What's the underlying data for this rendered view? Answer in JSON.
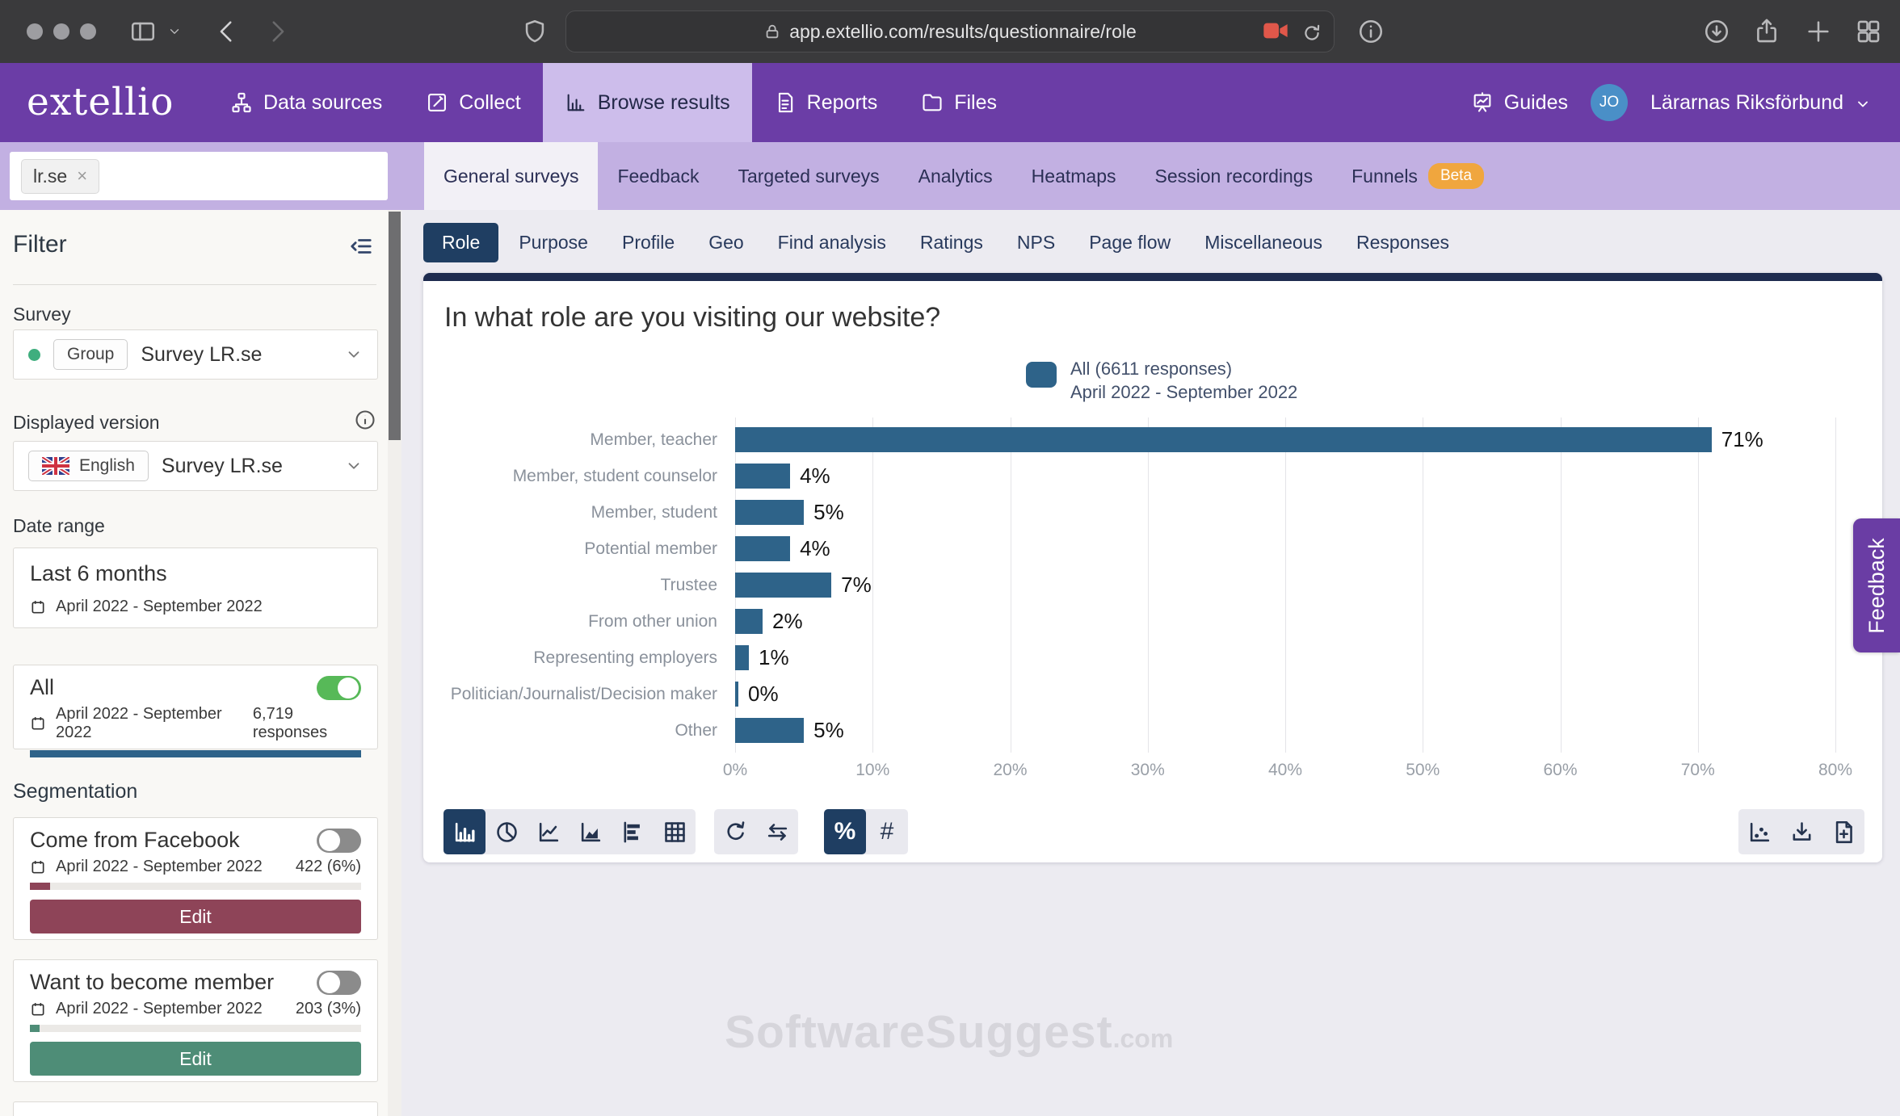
{
  "browser": {
    "url": "app.extellio.com/results/questionnaire/role"
  },
  "nav": {
    "brand": "extellio",
    "items": [
      {
        "label": "Data sources"
      },
      {
        "label": "Collect"
      },
      {
        "label": "Browse results"
      },
      {
        "label": "Reports"
      },
      {
        "label": "Files"
      }
    ],
    "guides_label": "Guides",
    "avatar_initials": "JO",
    "account_name": "Lärarnas Riksförbund"
  },
  "survey_tabs": {
    "filter_chip": "lr.se",
    "chip_close": "×",
    "items": [
      "General surveys",
      "Feedback",
      "Targeted surveys",
      "Analytics",
      "Heatmaps",
      "Session recordings",
      "Funnels"
    ],
    "beta_badge": "Beta"
  },
  "sidebar": {
    "heading": "Filter",
    "survey_label": "Survey",
    "survey_group_chip": "Group",
    "survey_value": "Survey LR.se",
    "displayed_version_label": "Displayed version",
    "language_chip": "English",
    "version_value": "Survey LR.se",
    "date_range_label": "Date range",
    "date_range_value": "Last 6 months",
    "date_range_detail": "April 2022 - September 2022",
    "all_card": {
      "title": "All",
      "date": "April 2022 - September 2022",
      "responses": "6,719 responses",
      "bar_color": "#2e6389"
    },
    "segmentation_label": "Segmentation",
    "segments": [
      {
        "title": "Come from Facebook",
        "date": "April 2022 - September 2022",
        "count": "422 (6%)",
        "edit_label": "Edit",
        "color": "#8e4458",
        "pct": 6
      },
      {
        "title": "Want to become member",
        "date": "April 2022 - September 2022",
        "count": "203 (3%)",
        "edit_label": "Edit",
        "color": "#4e8d77",
        "pct": 3
      }
    ]
  },
  "result_tabs": [
    "Role",
    "Purpose",
    "Profile",
    "Geo",
    "Find analysis",
    "Ratings",
    "NPS",
    "Page flow",
    "Miscellaneous",
    "Responses"
  ],
  "chart_data": {
    "type": "bar",
    "orientation": "horizontal",
    "title": "In what role are you visiting our website?",
    "legend": {
      "label": "All (6611 responses)",
      "sublabel": "April 2022 - September 2022",
      "color": "#2e6389",
      "position": "top"
    },
    "categories": [
      "Member, teacher",
      "Member, student counselor",
      "Member, student",
      "Potential member",
      "Trustee",
      "From other union",
      "Representing employers",
      "Politician/Journalist/Decision maker",
      "Other"
    ],
    "values": [
      71,
      4,
      5,
      4,
      7,
      2,
      1,
      0,
      5
    ],
    "value_suffix": "%",
    "xlim": [
      0,
      80
    ],
    "xticks": [
      0,
      10,
      20,
      30,
      40,
      50,
      60,
      70,
      80
    ],
    "xtick_labels": [
      "0%",
      "10%",
      "20%",
      "30%",
      "40%",
      "50%",
      "60%",
      "70%",
      "80%"
    ],
    "grid": true,
    "bar_color": "#2e6389"
  },
  "chart_toolbar": {
    "percent_label": "%",
    "hash_label": "#"
  },
  "watermark": {
    "text": "SoftwareSuggest",
    "suffix": ".com"
  },
  "feedback_tab_label": "Feedback",
  "colors": {
    "accent_purple": "#6b3da6",
    "nav_active_bg": "#cdbdeb",
    "tab_row_bg": "#c2b0e2",
    "navy": "#1f3e62",
    "bar_blue": "#2e6389",
    "toggle_on_green": "#57b958",
    "beta_orange": "#f0a63e"
  }
}
